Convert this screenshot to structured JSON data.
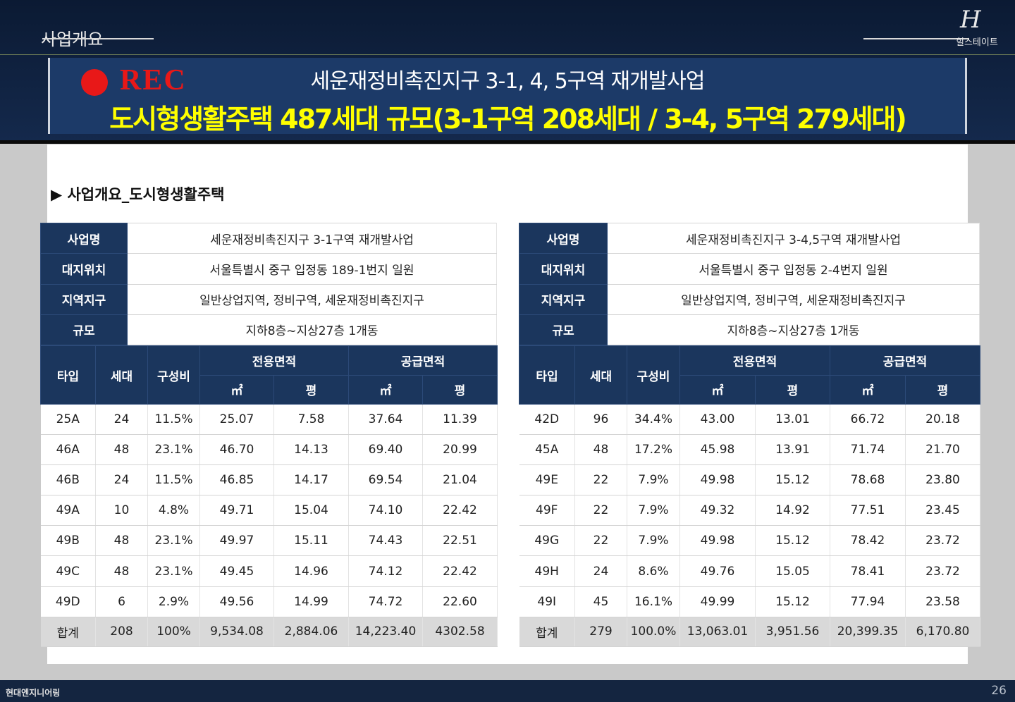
{
  "header": {
    "section": "사업개요",
    "logo_mark": "H",
    "logo_text": "힐스테이트",
    "rec": "REC",
    "line1": "세운재정비촉진지구 3-1, 4, 5구역 재개발사업",
    "line2": "도시형생활주택 487세대 규모(3-1구역 208세대 / 3-4, 5구역 279세대)"
  },
  "subtitle": "▶ 사업개요_도시형생활주택",
  "tables": [
    {
      "info": [
        [
          "사업명",
          "세운재정비촉진지구 3-1구역 재개발사업"
        ],
        [
          "대지위치",
          "서울특별시 중구 입정동 189-1번지 일원"
        ],
        [
          "지역지구",
          "일반상업지역, 정비구역, 세운재정비촉진지구"
        ],
        [
          "규모",
          "지하8층~지상27층 1개동"
        ]
      ],
      "headers": [
        "타입",
        "세대",
        "구성비"
      ],
      "group_headers": [
        "전용면적",
        "공급면적"
      ],
      "unit_headers": [
        "㎡",
        "평",
        "㎡",
        "평"
      ],
      "rows": [
        [
          "25A",
          "24",
          "11.5%",
          "25.07",
          "7.58",
          "37.64",
          "11.39"
        ],
        [
          "46A",
          "48",
          "23.1%",
          "46.70",
          "14.13",
          "69.40",
          "20.99"
        ],
        [
          "46B",
          "24",
          "11.5%",
          "46.85",
          "14.17",
          "69.54",
          "21.04"
        ],
        [
          "49A",
          "10",
          "4.8%",
          "49.71",
          "15.04",
          "74.10",
          "22.42"
        ],
        [
          "49B",
          "48",
          "23.1%",
          "49.97",
          "15.11",
          "74.43",
          "22.51"
        ],
        [
          "49C",
          "48",
          "23.1%",
          "49.45",
          "14.96",
          "74.12",
          "22.42"
        ],
        [
          "49D",
          "6",
          "2.9%",
          "49.56",
          "14.99",
          "74.72",
          "22.60"
        ]
      ],
      "total": [
        "합계",
        "208",
        "100%",
        "9,534.08",
        "2,884.06",
        "14,223.40",
        "4302.58"
      ]
    },
    {
      "info": [
        [
          "사업명",
          "세운재정비촉진지구 3-4,5구역 재개발사업"
        ],
        [
          "대지위치",
          "서울특별시 중구 입정동 2-4번지 일원"
        ],
        [
          "지역지구",
          "일반상업지역, 정비구역, 세운재정비촉진지구"
        ],
        [
          "규모",
          "지하8층~지상27층 1개동"
        ]
      ],
      "headers": [
        "타입",
        "세대",
        "구성비"
      ],
      "group_headers": [
        "전용면적",
        "공급면적"
      ],
      "unit_headers": [
        "㎡",
        "평",
        "㎡",
        "평"
      ],
      "rows": [
        [
          "42D",
          "96",
          "34.4%",
          "43.00",
          "13.01",
          "66.72",
          "20.18"
        ],
        [
          "45A",
          "48",
          "17.2%",
          "45.98",
          "13.91",
          "71.74",
          "21.70"
        ],
        [
          "49E",
          "22",
          "7.9%",
          "49.98",
          "15.12",
          "78.68",
          "23.80"
        ],
        [
          "49F",
          "22",
          "7.9%",
          "49.32",
          "14.92",
          "77.51",
          "23.45"
        ],
        [
          "49G",
          "22",
          "7.9%",
          "49.98",
          "15.12",
          "78.42",
          "23.72"
        ],
        [
          "49H",
          "24",
          "8.6%",
          "49.76",
          "15.05",
          "78.41",
          "23.72"
        ],
        [
          "49I",
          "45",
          "16.1%",
          "49.99",
          "15.12",
          "77.94",
          "23.58"
        ]
      ],
      "total": [
        "합계",
        "279",
        "100.0%",
        "13,063.01",
        "3,951.56",
        "20,399.35",
        "6,170.80"
      ]
    }
  ],
  "footer": {
    "company": "현대엔지니어링",
    "page": "26"
  }
}
